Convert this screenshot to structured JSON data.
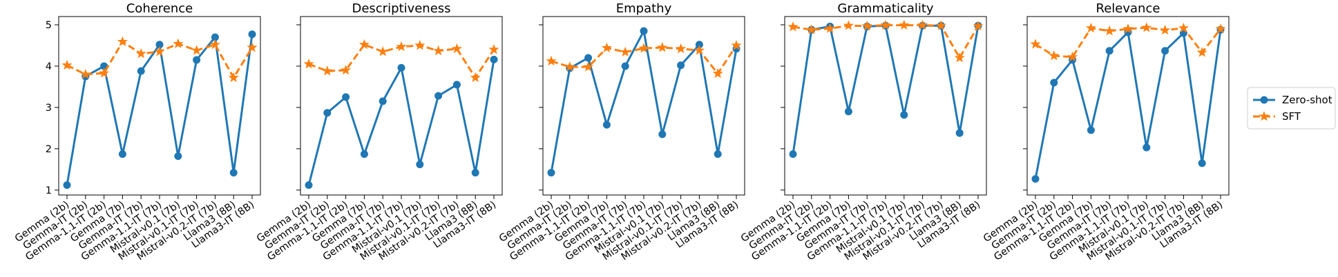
{
  "chart_data": {
    "type": "line",
    "categories": [
      "Gemma (2b)",
      "Gemma-IT (2b)",
      "Gemma-1.1-IT (2b)",
      "Gemma (7b)",
      "Gemma-IT (7b)",
      "Gemma-1.1-IT (7b)",
      "Mistral-v0.1 (7b)",
      "Mistral-v0.1-IT (7b)",
      "Mistral-v0.2-IT (7b)",
      "Llama3 (8B)",
      "Llama3-IT (8B)"
    ],
    "y_ticks": [
      "1",
      "2",
      "3",
      "4",
      "5"
    ],
    "ylim": [
      0.88,
      5.2
    ],
    "grid": false,
    "legend_position": "right",
    "legend": [
      {
        "name": "Zero-shot",
        "color": "#1f77b4",
        "marker": "circle"
      },
      {
        "name": "SFT",
        "color": "#ff7f0e",
        "marker": "star",
        "dashed": true
      }
    ],
    "panels": [
      {
        "title": "Coherence",
        "series": [
          {
            "name": "Zero-shot",
            "values": [
              1.12,
              3.75,
              4.0,
              1.87,
              3.88,
              4.52,
              1.82,
              4.15,
              4.7,
              1.42,
              4.77
            ]
          },
          {
            "name": "SFT",
            "values": [
              4.02,
              3.8,
              3.83,
              4.59,
              4.3,
              4.35,
              4.54,
              4.38,
              4.52,
              3.72,
              4.45
            ]
          }
        ]
      },
      {
        "title": "Descriptiveness",
        "series": [
          {
            "name": "Zero-shot",
            "values": [
              1.12,
              2.87,
              3.25,
              1.87,
              3.15,
              3.96,
              1.62,
              3.28,
              3.55,
              1.42,
              4.16
            ]
          },
          {
            "name": "SFT",
            "values": [
              4.05,
              3.88,
              3.9,
              4.52,
              4.35,
              4.47,
              4.5,
              4.37,
              4.42,
              3.72,
              4.4
            ]
          }
        ]
      },
      {
        "title": "Empathy",
        "series": [
          {
            "name": "Zero-shot",
            "values": [
              1.42,
              3.95,
              4.2,
              2.58,
              4.0,
              4.85,
              2.35,
              4.02,
              4.52,
              1.87,
              4.42
            ]
          },
          {
            "name": "SFT",
            "values": [
              4.12,
              3.98,
              3.98,
              4.44,
              4.34,
              4.43,
              4.45,
              4.42,
              4.38,
              3.82,
              4.5
            ]
          }
        ]
      },
      {
        "title": "Grammaticality",
        "series": [
          {
            "name": "Zero-shot",
            "values": [
              1.87,
              4.88,
              4.96,
              2.9,
              4.96,
              4.98,
              2.82,
              4.98,
              4.98,
              2.38,
              4.98
            ]
          },
          {
            "name": "SFT",
            "values": [
              4.95,
              4.88,
              4.91,
              4.98,
              4.97,
              4.99,
              4.99,
              4.99,
              4.98,
              4.2,
              4.97
            ]
          }
        ]
      },
      {
        "title": "Relevance",
        "series": [
          {
            "name": "Zero-shot",
            "values": [
              1.27,
              3.6,
              4.15,
              2.45,
              4.37,
              4.82,
              2.03,
              4.37,
              4.8,
              1.65,
              4.88
            ]
          },
          {
            "name": "SFT",
            "values": [
              4.53,
              4.25,
              4.22,
              4.92,
              4.85,
              4.9,
              4.93,
              4.87,
              4.92,
              4.33,
              4.9
            ]
          }
        ]
      }
    ]
  }
}
